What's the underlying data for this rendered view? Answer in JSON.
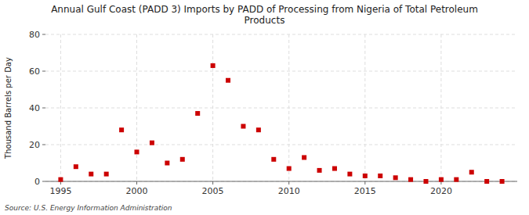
{
  "chart_data": {
    "type": "scatter",
    "title": "Annual Gulf Coast (PADD 3) Imports by PADD of Processing from Nigeria of Total Petroleum\nProducts",
    "ylabel": "Thousand Barrels per Day",
    "source": "Source: U.S. Energy Information Administration",
    "x": [
      1995,
      1996,
      1997,
      1998,
      1999,
      2000,
      2001,
      2002,
      2003,
      2004,
      2005,
      2006,
      2007,
      2008,
      2009,
      2010,
      2011,
      2012,
      2013,
      2014,
      2015,
      2016,
      2017,
      2018,
      2019,
      2020,
      2021,
      2022,
      2023,
      2024
    ],
    "values": [
      1,
      8,
      4,
      4,
      28,
      16,
      21,
      10,
      12,
      37,
      63,
      55,
      30,
      28,
      12,
      7,
      13,
      6,
      7,
      4,
      3,
      3,
      2,
      1,
      0,
      1,
      1,
      5,
      0,
      0
    ],
    "color": "#cc0000",
    "marker": "square",
    "xlim": [
      1994.0,
      2025.0
    ],
    "ylim": [
      0,
      80
    ],
    "xticks": [
      1995,
      2000,
      2005,
      2010,
      2015,
      2020
    ],
    "yticks": [
      0,
      20,
      40,
      60,
      80
    ],
    "grid": true
  }
}
